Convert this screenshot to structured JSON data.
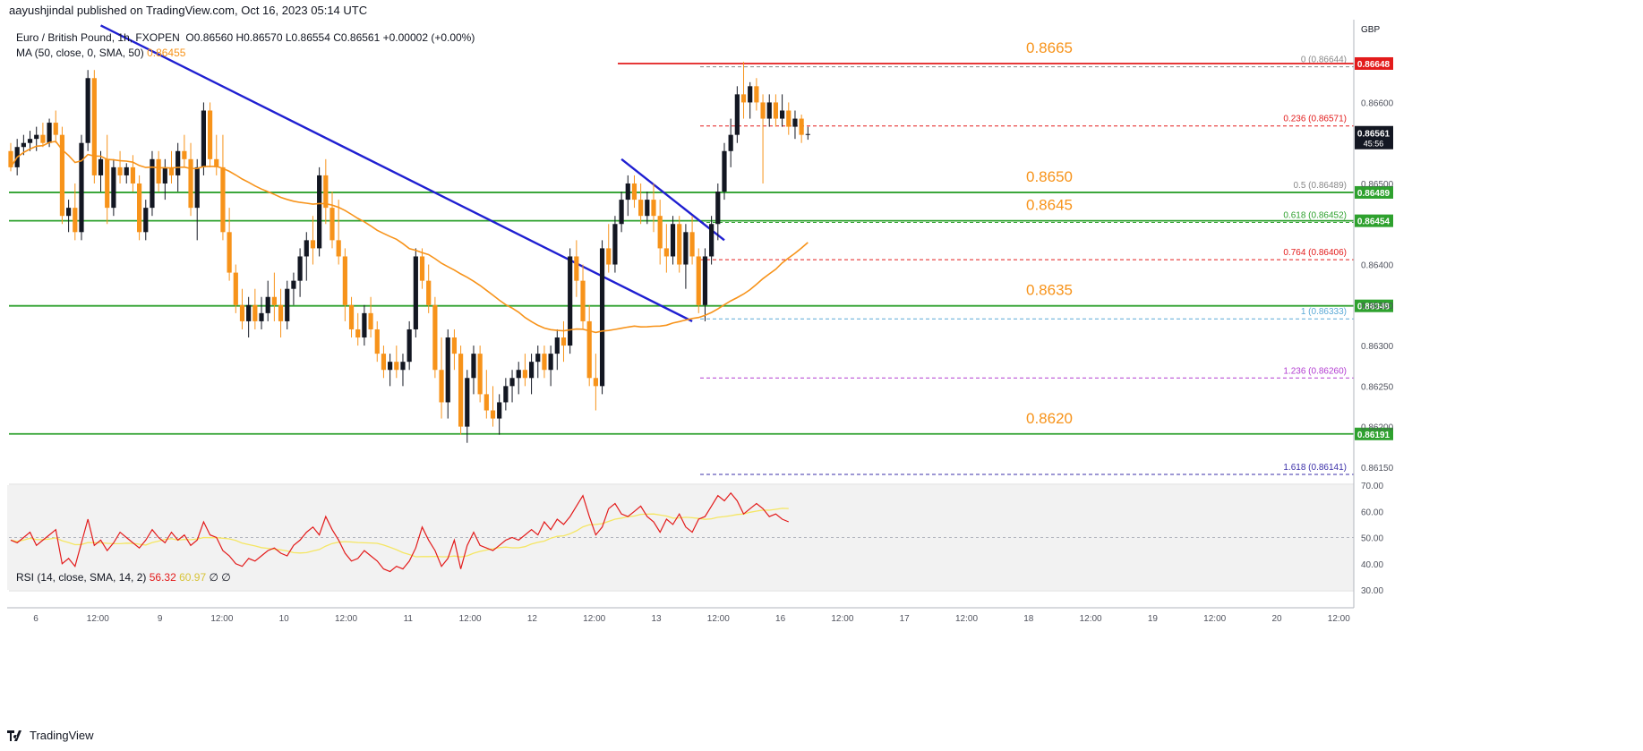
{
  "header": {
    "publisher": "aayushjindal published on TradingView.com, Oct 16, 2023 05:14 UTC"
  },
  "legend": {
    "symbol": "Euro / British Pound, 1h, FXOPEN",
    "ohlc": "O0.86560 H0.86570 L0.86554 C0.86561 +0.00002 (+0.00%)",
    "ma_label": "MA (50, close, 0, SMA, 50)",
    "ma_value": "0.86455",
    "rsi_label": "RSI (14, close, SMA, 14, 2)",
    "rsi_value": "56.32",
    "rsi_ma_value": "60.97",
    "rsi_extra": "∅ ∅"
  },
  "footer": {
    "brand": "TradingView"
  },
  "colors": {
    "up": "#131722",
    "down": "#f7931a",
    "ma": "#f7931a",
    "trendline": "#1f1fd1",
    "support": "#2ea12e",
    "resistance": "#e31b1b",
    "rsi": "#e31b1b",
    "rsi_ma": "#f5e663"
  },
  "chart_data": {
    "type": "candlestick",
    "title": "Euro / British Pound, 1h, FXOPEN",
    "currency": "GBP",
    "current_price": "0.86561",
    "countdown": "45:56",
    "y_ticks": [
      "0.86600",
      "0.86550",
      "0.86500",
      "0.86400",
      "0.86350",
      "0.86300",
      "0.86250",
      "0.86200",
      "0.86150"
    ],
    "x_ticks": [
      "6",
      "12:00",
      "9",
      "12:00",
      "10",
      "12:00",
      "11",
      "12:00",
      "12",
      "12:00",
      "13",
      "12:00",
      "16",
      "12:00",
      "17",
      "12:00",
      "18",
      "12:00",
      "19",
      "12:00",
      "20",
      "12:00"
    ],
    "levels": [
      {
        "label": "0.8665",
        "price": 0.86648,
        "color": "resistance",
        "axis_label": "0.86648"
      },
      {
        "label": "0.8650",
        "price": 0.86489,
        "color": "support",
        "axis_label": "0.86489"
      },
      {
        "label": "0.8645",
        "price": 0.86454,
        "color": "support",
        "axis_label": "0.86454"
      },
      {
        "label": "0.8635",
        "price": 0.86349,
        "color": "support",
        "axis_label": "0.86349"
      },
      {
        "label": "0.8620",
        "price": 0.86191,
        "color": "support",
        "axis_label": "0.86191"
      }
    ],
    "fibonacci": [
      {
        "label": "0 (0.86644)",
        "price": 0.86644,
        "color": "#888888"
      },
      {
        "label": "0.236 (0.86571)",
        "price": 0.86571,
        "color": "#e31b1b"
      },
      {
        "label": "0.5 (0.86489)",
        "price": 0.86489,
        "color": "#888888"
      },
      {
        "label": "0.618 (0.86452)",
        "price": 0.86452,
        "color": "#2ea12e"
      },
      {
        "label": "0.764 (0.86406)",
        "price": 0.86406,
        "color": "#e31b1b"
      },
      {
        "label": "1 (0.86333)",
        "price": 0.86333,
        "color": "#5aa9d6"
      },
      {
        "label": "1.236 (0.86260)",
        "price": 0.8626,
        "color": "#b23cd1"
      },
      {
        "label": "1.618 (0.86141)",
        "price": 0.86141,
        "color": "#3b2fa8"
      }
    ],
    "candles": [
      [
        0.8654,
        0.8655,
        0.86515,
        0.8652
      ],
      [
        0.8652,
        0.86555,
        0.8651,
        0.86545
      ],
      [
        0.86545,
        0.8656,
        0.86535,
        0.8655
      ],
      [
        0.8655,
        0.86565,
        0.8654,
        0.86555
      ],
      [
        0.86555,
        0.8657,
        0.8654,
        0.8656
      ],
      [
        0.8656,
        0.86575,
        0.86545,
        0.8655
      ],
      [
        0.8655,
        0.8658,
        0.86545,
        0.86575
      ],
      [
        0.86575,
        0.8659,
        0.8655,
        0.8656
      ],
      [
        0.8656,
        0.8657,
        0.8645,
        0.8646
      ],
      [
        0.8646,
        0.8648,
        0.8644,
        0.8647
      ],
      [
        0.8647,
        0.865,
        0.8643,
        0.8644
      ],
      [
        0.8644,
        0.8656,
        0.8643,
        0.8655
      ],
      [
        0.8655,
        0.8664,
        0.8654,
        0.8663
      ],
      [
        0.8663,
        0.8664,
        0.865,
        0.8651
      ],
      [
        0.8651,
        0.8654,
        0.8649,
        0.8653
      ],
      [
        0.8653,
        0.8656,
        0.8645,
        0.8647
      ],
      [
        0.8647,
        0.8653,
        0.8646,
        0.8652
      ],
      [
        0.8652,
        0.8654,
        0.865,
        0.8651
      ],
      [
        0.8651,
        0.86525,
        0.865,
        0.8652
      ],
      [
        0.8652,
        0.86535,
        0.8649,
        0.865
      ],
      [
        0.865,
        0.8651,
        0.8643,
        0.8644
      ],
      [
        0.8644,
        0.8648,
        0.8643,
        0.8647
      ],
      [
        0.8647,
        0.8654,
        0.8646,
        0.8653
      ],
      [
        0.8653,
        0.8654,
        0.8649,
        0.865
      ],
      [
        0.865,
        0.8653,
        0.8648,
        0.8652
      ],
      [
        0.8652,
        0.8654,
        0.865,
        0.8651
      ],
      [
        0.8651,
        0.8655,
        0.8649,
        0.8654
      ],
      [
        0.8654,
        0.8656,
        0.8652,
        0.8653
      ],
      [
        0.8653,
        0.8655,
        0.8646,
        0.8647
      ],
      [
        0.8647,
        0.8653,
        0.8643,
        0.8652
      ],
      [
        0.8652,
        0.866,
        0.8651,
        0.8659
      ],
      [
        0.8659,
        0.866,
        0.8652,
        0.8653
      ],
      [
        0.8653,
        0.8656,
        0.8651,
        0.8652
      ],
      [
        0.8652,
        0.8656,
        0.8643,
        0.8644
      ],
      [
        0.8644,
        0.8647,
        0.8638,
        0.8639
      ],
      [
        0.8639,
        0.864,
        0.8634,
        0.8635
      ],
      [
        0.8635,
        0.8637,
        0.8632,
        0.8633
      ],
      [
        0.8633,
        0.8636,
        0.8631,
        0.8635
      ],
      [
        0.8635,
        0.8637,
        0.8632,
        0.8633
      ],
      [
        0.8633,
        0.8636,
        0.8632,
        0.8634
      ],
      [
        0.8634,
        0.8638,
        0.8633,
        0.8636
      ],
      [
        0.8636,
        0.8639,
        0.8633,
        0.8635
      ],
      [
        0.8635,
        0.8637,
        0.8631,
        0.8633
      ],
      [
        0.8633,
        0.8638,
        0.8632,
        0.8637
      ],
      [
        0.8637,
        0.8639,
        0.8635,
        0.8638
      ],
      [
        0.8638,
        0.8642,
        0.8636,
        0.8641
      ],
      [
        0.8641,
        0.8644,
        0.8638,
        0.8643
      ],
      [
        0.8643,
        0.8646,
        0.864,
        0.8642
      ],
      [
        0.8642,
        0.8652,
        0.8641,
        0.8651
      ],
      [
        0.8651,
        0.8653,
        0.8645,
        0.8647
      ],
      [
        0.8647,
        0.8649,
        0.8642,
        0.8643
      ],
      [
        0.8643,
        0.8648,
        0.864,
        0.8641
      ],
      [
        0.8641,
        0.8642,
        0.8633,
        0.8635
      ],
      [
        0.8635,
        0.8636,
        0.8631,
        0.8632
      ],
      [
        0.8632,
        0.8634,
        0.863,
        0.8631
      ],
      [
        0.8631,
        0.8635,
        0.863,
        0.8634
      ],
      [
        0.8634,
        0.8636,
        0.8631,
        0.8632
      ],
      [
        0.8632,
        0.8633,
        0.8628,
        0.8629
      ],
      [
        0.8629,
        0.863,
        0.8626,
        0.8627
      ],
      [
        0.8627,
        0.8629,
        0.8625,
        0.8628
      ],
      [
        0.8628,
        0.863,
        0.8626,
        0.8627
      ],
      [
        0.8627,
        0.8629,
        0.8625,
        0.8628
      ],
      [
        0.8628,
        0.8633,
        0.8627,
        0.8632
      ],
      [
        0.8632,
        0.8642,
        0.8631,
        0.8641
      ],
      [
        0.8641,
        0.8642,
        0.8637,
        0.8638
      ],
      [
        0.8638,
        0.864,
        0.8634,
        0.8635
      ],
      [
        0.8635,
        0.8636,
        0.8626,
        0.8627
      ],
      [
        0.8627,
        0.8631,
        0.8621,
        0.8623
      ],
      [
        0.8623,
        0.8632,
        0.8621,
        0.8631
      ],
      [
        0.8631,
        0.8632,
        0.8627,
        0.8629
      ],
      [
        0.8629,
        0.863,
        0.8619,
        0.862
      ],
      [
        0.862,
        0.8627,
        0.8618,
        0.8626
      ],
      [
        0.8626,
        0.863,
        0.8624,
        0.8629
      ],
      [
        0.8629,
        0.863,
        0.8623,
        0.8624
      ],
      [
        0.8624,
        0.8627,
        0.8621,
        0.8622
      ],
      [
        0.8622,
        0.8625,
        0.862,
        0.8621
      ],
      [
        0.8621,
        0.8624,
        0.8619,
        0.8623
      ],
      [
        0.8623,
        0.8626,
        0.8622,
        0.8625
      ],
      [
        0.8625,
        0.8627,
        0.8623,
        0.8626
      ],
      [
        0.8626,
        0.8628,
        0.8624,
        0.8627
      ],
      [
        0.8627,
        0.8629,
        0.8625,
        0.8626
      ],
      [
        0.8626,
        0.8629,
        0.8624,
        0.8628
      ],
      [
        0.8628,
        0.863,
        0.8626,
        0.8629
      ],
      [
        0.8629,
        0.863,
        0.8626,
        0.8627
      ],
      [
        0.8627,
        0.863,
        0.8625,
        0.8629
      ],
      [
        0.8629,
        0.8632,
        0.8627,
        0.8631
      ],
      [
        0.8631,
        0.8633,
        0.8628,
        0.863
      ],
      [
        0.863,
        0.8642,
        0.8629,
        0.8641
      ],
      [
        0.8641,
        0.8643,
        0.8636,
        0.8638
      ],
      [
        0.8638,
        0.864,
        0.8632,
        0.8633
      ],
      [
        0.8633,
        0.8635,
        0.8625,
        0.8626
      ],
      [
        0.8626,
        0.8629,
        0.8622,
        0.8625
      ],
      [
        0.8625,
        0.8643,
        0.8624,
        0.8642
      ],
      [
        0.8642,
        0.8645,
        0.8639,
        0.864
      ],
      [
        0.864,
        0.8646,
        0.8639,
        0.8645
      ],
      [
        0.8645,
        0.8649,
        0.8644,
        0.8648
      ],
      [
        0.8648,
        0.8651,
        0.8646,
        0.865
      ],
      [
        0.865,
        0.8651,
        0.8647,
        0.8648
      ],
      [
        0.8648,
        0.865,
        0.8645,
        0.8646
      ],
      [
        0.8646,
        0.8649,
        0.8645,
        0.8648
      ],
      [
        0.8648,
        0.865,
        0.8644,
        0.8646
      ],
      [
        0.8646,
        0.8648,
        0.864,
        0.8642
      ],
      [
        0.8642,
        0.8645,
        0.8639,
        0.8641
      ],
      [
        0.8641,
        0.8646,
        0.864,
        0.8645
      ],
      [
        0.8645,
        0.8646,
        0.8639,
        0.864
      ],
      [
        0.864,
        0.8645,
        0.8637,
        0.8644
      ],
      [
        0.8644,
        0.8646,
        0.864,
        0.8641
      ],
      [
        0.8641,
        0.8642,
        0.8634,
        0.8635
      ],
      [
        0.8635,
        0.8642,
        0.8633,
        0.8641
      ],
      [
        0.8641,
        0.8646,
        0.864,
        0.8645
      ],
      [
        0.8645,
        0.865,
        0.8643,
        0.8649
      ],
      [
        0.8649,
        0.8655,
        0.8648,
        0.8654
      ],
      [
        0.8654,
        0.8658,
        0.8652,
        0.8656
      ],
      [
        0.8656,
        0.8662,
        0.8655,
        0.8661
      ],
      [
        0.8661,
        0.8665,
        0.8658,
        0.866
      ],
      [
        0.866,
        0.86625,
        0.8658,
        0.8662
      ],
      [
        0.8662,
        0.8663,
        0.8659,
        0.866
      ],
      [
        0.866,
        0.8661,
        0.865,
        0.8658
      ],
      [
        0.8658,
        0.8661,
        0.8657,
        0.866
      ],
      [
        0.866,
        0.8661,
        0.8657,
        0.8658
      ],
      [
        0.8658,
        0.8661,
        0.8657,
        0.8659
      ],
      [
        0.8659,
        0.866,
        0.8656,
        0.8657
      ],
      [
        0.8657,
        0.8659,
        0.86555,
        0.8658
      ],
      [
        0.8658,
        0.86585,
        0.8655,
        0.8656
      ],
      [
        0.8656,
        0.8657,
        0.86554,
        0.86561
      ]
    ],
    "trendlines": [
      {
        "from": {
          "x": "Oct 5 13:00",
          "y": 0.86695
        },
        "to": {
          "x": "Oct 13 08:00",
          "y": 0.8633
        }
      },
      {
        "from": {
          "x": "Oct 12 17:00",
          "y": 0.8653
        },
        "to": {
          "x": "Oct 13 14:00",
          "y": 0.8643
        }
      }
    ],
    "rsi": {
      "ylim": [
        30,
        70
      ],
      "y_ticks": [
        "70.00",
        "60.00",
        "50.00",
        "40.00",
        "30.00"
      ],
      "values": [
        49,
        48,
        50,
        52,
        47,
        49,
        51,
        53,
        40,
        42,
        39,
        48,
        57,
        47,
        49,
        45,
        48,
        52,
        50,
        48,
        46,
        49,
        53,
        50,
        48,
        52,
        49,
        51,
        47,
        49,
        56,
        51,
        50,
        45,
        43,
        40,
        39,
        42,
        41,
        43,
        45,
        46,
        44,
        43,
        47,
        49,
        52,
        54,
        51,
        58,
        53,
        49,
        44,
        41,
        42,
        45,
        43,
        41,
        38,
        37,
        39,
        38,
        41,
        46,
        54,
        49,
        45,
        39,
        42,
        49,
        38,
        47,
        52,
        47,
        46,
        45,
        47,
        49,
        50,
        49,
        51,
        53,
        51,
        56,
        53,
        57,
        55,
        58,
        62,
        66,
        58,
        51,
        54,
        61,
        63,
        59,
        58,
        60,
        62,
        58,
        56,
        52,
        57,
        55,
        59,
        54,
        52,
        57,
        58,
        62,
        66,
        64,
        67,
        64,
        59,
        61,
        63,
        61,
        58,
        59,
        57,
        56
      ]
    }
  }
}
